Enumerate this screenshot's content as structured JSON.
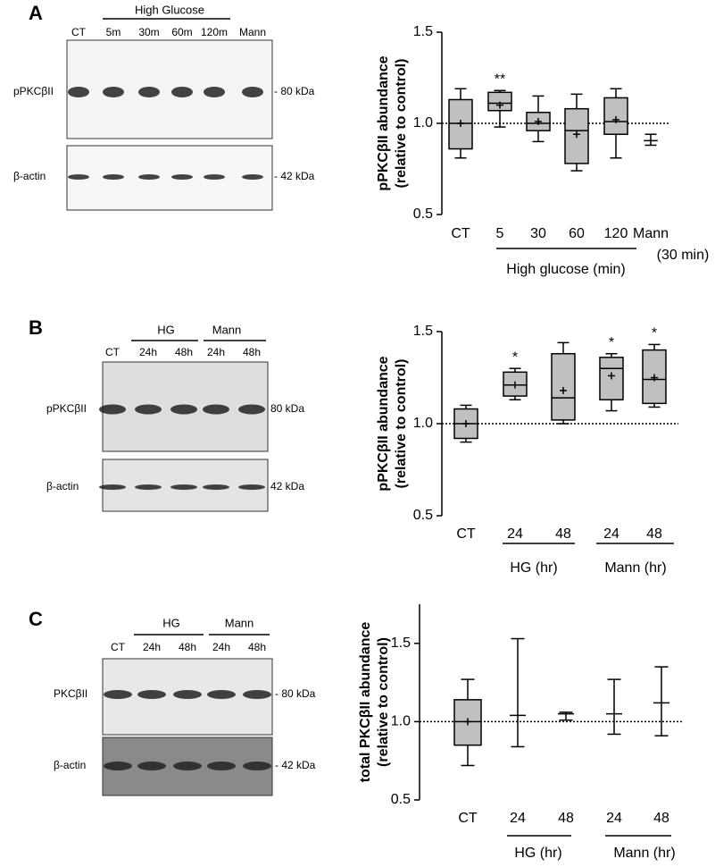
{
  "blots": [
    {
      "panel": "A",
      "header": [
        "High Glucose"
      ],
      "lanes": [
        "CT",
        "5m",
        "30m",
        "60m",
        "120m",
        "Mann"
      ],
      "rows": [
        {
          "label": "pPKCβII",
          "marker": "- 80 kDa"
        },
        {
          "label": "β-actin",
          "marker": "- 42 kDa"
        }
      ]
    },
    {
      "panel": "B",
      "header": [
        "HG",
        "Mann"
      ],
      "lanes": [
        "CT",
        "24h",
        "48h",
        "24h",
        "48h"
      ],
      "rows": [
        {
          "label": "pPKCβII",
          "marker": "80 kDa"
        },
        {
          "label": "β-actin",
          "marker": "42 kDa"
        }
      ]
    },
    {
      "panel": "C",
      "header": [
        "HG",
        "Mann"
      ],
      "lanes": [
        "CT",
        "24h",
        "48h",
        "24h",
        "48h"
      ],
      "rows": [
        {
          "label": "PKCβII",
          "marker": "- 80 kDa"
        },
        {
          "label": "β-actin",
          "marker": "- 42 kDa"
        }
      ]
    }
  ],
  "chart_data": [
    {
      "type": "box",
      "ylabel": [
        "pPKCβII abundance",
        "(relative to control)"
      ],
      "categories": [
        "CT",
        "5",
        "30",
        "60",
        "120",
        "Mann"
      ],
      "boxes": [
        {
          "min": 0.81,
          "q1": 0.86,
          "median": 1.0,
          "q3": 1.13,
          "max": 1.19,
          "mean": 1.0
        },
        {
          "min": 0.98,
          "q1": 1.07,
          "median": 1.11,
          "q3": 1.17,
          "max": 1.18,
          "mean": 1.1,
          "significance": "**"
        },
        {
          "min": 0.9,
          "q1": 0.96,
          "median": 1.0,
          "q3": 1.06,
          "max": 1.15,
          "mean": 1.01
        },
        {
          "min": 0.74,
          "q1": 0.78,
          "median": 0.96,
          "q3": 1.08,
          "max": 1.16,
          "mean": 0.94
        },
        {
          "min": 0.81,
          "q1": 0.94,
          "median": 1.01,
          "q3": 1.14,
          "max": 1.19,
          "mean": 1.02
        },
        {
          "min": 0.88,
          "max": 0.94,
          "mean": 0.905
        }
      ],
      "group_labels": [
        "High glucose (min)"
      ],
      "note": "(30 min)",
      "ylim": [
        0.5,
        1.5
      ],
      "yticks": [
        0.5,
        {
          "value": 1,
          "label": "1.0"
        },
        1.5
      ],
      "reference_line": 1,
      "color": "#c0c0c0"
    },
    {
      "type": "box",
      "ylabel": [
        "pPKCβII abundance",
        "(relative to control)"
      ],
      "categories": [
        "CT",
        "24",
        "48",
        "24",
        "48"
      ],
      "boxes": [
        {
          "min": 0.9,
          "q1": 0.92,
          "median": 1.0,
          "q3": 1.08,
          "max": 1.1,
          "mean": 1.0
        },
        {
          "min": 1.13,
          "q1": 1.15,
          "median": 1.21,
          "q3": 1.28,
          "max": 1.3,
          "mean": 1.21,
          "significance": "*"
        },
        {
          "min": 1.0,
          "q1": 1.02,
          "median": 1.14,
          "q3": 1.38,
          "max": 1.44,
          "mean": 1.18
        },
        {
          "min": 1.07,
          "q1": 1.13,
          "median": 1.3,
          "q3": 1.36,
          "max": 1.38,
          "mean": 1.26,
          "significance": "*"
        },
        {
          "min": 1.09,
          "q1": 1.11,
          "median": 1.24,
          "q3": 1.4,
          "max": 1.43,
          "mean": 1.25,
          "significance": "*"
        }
      ],
      "group_labels": [
        "HG (hr)",
        "Mann (hr)"
      ],
      "ylim": [
        0.5,
        1.5
      ],
      "yticks": [
        0.5,
        {
          "value": 1,
          "label": "1.0"
        },
        1.5
      ],
      "reference_line": 1,
      "color": "#c0c0c0"
    },
    {
      "type": "box",
      "ylabel": [
        "total PKCβII abundance",
        "(relative to control)"
      ],
      "categories": [
        "CT",
        "24",
        "48",
        "24",
        "48"
      ],
      "boxes": [
        {
          "min": 0.72,
          "q1": 0.85,
          "median": 1.0,
          "q3": 1.14,
          "max": 1.27,
          "mean": 1.0
        },
        {
          "min": 0.84,
          "max": 1.53,
          "mean": 1.04
        },
        {
          "min": 1.01,
          "max": 1.06,
          "mean": 1.05
        },
        {
          "min": 0.92,
          "max": 1.27,
          "mean": 1.05
        },
        {
          "min": 0.91,
          "max": 1.35,
          "mean": 1.12
        }
      ],
      "group_labels": [
        "HG (hr)",
        "Mann (hr)"
      ],
      "ylim": [
        0.5,
        1.75
      ],
      "yticks": [
        0.5,
        {
          "value": 1,
          "label": "1.0"
        },
        1.5
      ],
      "reference_line": 1,
      "color": "#c0c0c0"
    }
  ]
}
